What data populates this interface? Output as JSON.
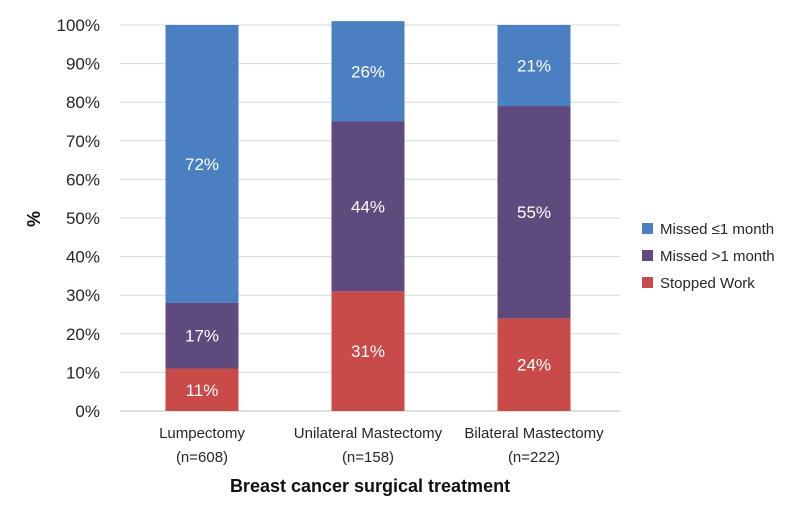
{
  "chart_data": {
    "type": "bar",
    "stacked": true,
    "title": "",
    "xlabel": "Breast cancer surgical treatment",
    "ylabel": "%",
    "ylim": [
      0,
      100
    ],
    "yticks": [
      "0%",
      "10%",
      "20%",
      "30%",
      "40%",
      "50%",
      "60%",
      "70%",
      "80%",
      "90%",
      "100%"
    ],
    "categories": [
      {
        "name": "Lumpectomy",
        "n": "(n=608)"
      },
      {
        "name": "Unilateral Mastectomy",
        "n": "(n=158)"
      },
      {
        "name": "Bilateral Mastectomy",
        "n": "(n=222)"
      }
    ],
    "series": [
      {
        "name": "Stopped Work",
        "color": "#c84b49",
        "values": [
          11,
          31,
          24
        ],
        "labels": [
          "11%",
          "31%",
          "24%"
        ]
      },
      {
        "name": "Missed >1 month",
        "color": "#5e4a7c",
        "values": [
          17,
          44,
          55
        ],
        "labels": [
          "17%",
          "44%",
          "55%"
        ]
      },
      {
        "name": "Missed ≤1 month",
        "color": "#4a80c1",
        "values": [
          72,
          26,
          21
        ],
        "labels": [
          "72%",
          "26%",
          "21%"
        ]
      }
    ],
    "legend_order": [
      "Missed ≤1 month",
      "Missed >1 month",
      "Stopped Work"
    ],
    "legend_position": "right",
    "grid": true
  }
}
